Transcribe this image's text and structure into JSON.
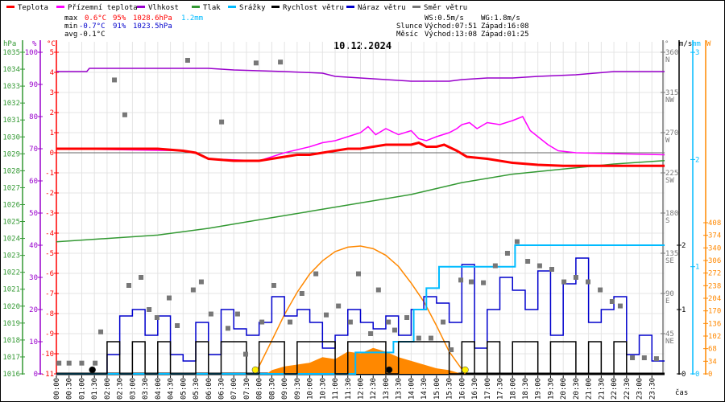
{
  "legend": [
    {
      "label": "Teplota",
      "color": "#ff0000"
    },
    {
      "label": "Přízemní teplota",
      "color": "#ff00ff"
    },
    {
      "label": "Vlhkost",
      "color": "#9900cc"
    },
    {
      "label": "Tlak",
      "color": "#339933"
    },
    {
      "label": "Srážky",
      "color": "#00bbff"
    },
    {
      "label": "Rychlost větru",
      "color": "#000000"
    },
    {
      "label": "Náraz větru",
      "color": "#0000cc"
    },
    {
      "label": "Směr větru",
      "color": "#777777"
    }
  ],
  "stats": {
    "max": {
      "label": "max",
      "temp": "0.6°C",
      "hum": "95%",
      "press": "1028.6hPa",
      "rain": "1.2mm"
    },
    "min": {
      "label": "min",
      "temp": "-0.7°C",
      "hum": "91%",
      "press": "1023.5hPa"
    },
    "avg": {
      "label": "avg",
      "temp": "-0.1°C"
    },
    "ws": "WS:0.5m/s",
    "wg": "WG:1.8m/s",
    "sun": {
      "label": "Slunce",
      "rise": "Východ:07:51",
      "set": "Západ:16:08"
    },
    "moon": {
      "label": "Měsíc",
      "rise": "Východ:13:08",
      "set": "Západ:01:25"
    }
  },
  "chart_data": {
    "type": "line",
    "title": "10.12.2024",
    "xlabel": "čas",
    "xlim": [
      0,
      24
    ],
    "x_ticks": [
      "00:00",
      "00:30",
      "01:00",
      "01:30",
      "02:00",
      "02:30",
      "03:00",
      "03:30",
      "04:00",
      "04:30",
      "05:00",
      "05:30",
      "06:00",
      "06:30",
      "07:00",
      "07:30",
      "08:00",
      "08:30",
      "09:00",
      "09:30",
      "10:00",
      "10:30",
      "11:00",
      "11:30",
      "12:00",
      "12:30",
      "13:00",
      "13:30",
      "14:00",
      "14:30",
      "15:00",
      "15:30",
      "16:00",
      "16:30",
      "17:00",
      "17:30",
      "18:00",
      "18:30",
      "19:00",
      "19:30",
      "20:00",
      "20:30",
      "21:00",
      "21:30",
      "22:00",
      "22:30",
      "23:00",
      "23:30"
    ],
    "axes": {
      "hPa": {
        "label": "hPa",
        "range": [
          1016,
          1035
        ],
        "ticks": [
          "1016",
          "1017",
          "1018",
          "1019",
          "1020",
          "1021",
          "1022",
          "1023",
          "1024",
          "1025",
          "1026",
          "1027",
          "1028",
          "1029",
          "1030",
          "1031",
          "1032",
          "1033",
          "1034",
          "1035"
        ]
      },
      "percent": {
        "label": "%",
        "range": [
          0,
          100
        ],
        "ticks": [
          "0",
          "10",
          "20",
          "30",
          "40",
          "50",
          "60",
          "70",
          "80",
          "90",
          "100"
        ]
      },
      "celsius": {
        "label": "°C",
        "range": [
          -11,
          5
        ],
        "ticks": [
          "-11",
          "-10",
          "-9",
          "-8",
          "-7",
          "-6",
          "-5",
          "-4",
          "-3",
          "-2",
          "-1",
          "0",
          "1",
          "2",
          "3",
          "4",
          "5"
        ]
      },
      "degrees": {
        "label": "°",
        "range": [
          0,
          360
        ],
        "ticks": [
          {
            "v": "45",
            "d": "NE"
          },
          {
            "v": "90",
            "d": "E"
          },
          {
            "v": "135",
            "d": "SE"
          },
          {
            "v": "180",
            "d": "S"
          },
          {
            "v": "225",
            "d": "SW"
          },
          {
            "v": "270",
            "d": "W"
          },
          {
            "v": "315",
            "d": "NW"
          },
          {
            "v": "360",
            "d": "N"
          }
        ]
      },
      "ms": {
        "label": "m/s",
        "range": [
          0,
          5
        ],
        "ticks": [
          "0",
          "1",
          "2"
        ]
      },
      "mm": {
        "label": "mm",
        "range": [
          0,
          3
        ],
        "ticks": [
          "0",
          "1",
          "2",
          "3"
        ]
      },
      "W": {
        "label": "W",
        "range": [
          0,
          868
        ],
        "ticks": [
          "0",
          "34",
          "68",
          "102",
          "136",
          "170",
          "204",
          "238",
          "272",
          "306",
          "340",
          "374",
          "408"
        ]
      }
    },
    "series": [
      {
        "name": "Teplota",
        "axis": "celsius",
        "color": "#ff0000",
        "points": [
          [
            0,
            0.2
          ],
          [
            1,
            0.2
          ],
          [
            2,
            0.2
          ],
          [
            3,
            0.2
          ],
          [
            4,
            0.2
          ],
          [
            5,
            0.1
          ],
          [
            5.5,
            0
          ],
          [
            6,
            -0.3
          ],
          [
            7,
            -0.4
          ],
          [
            8,
            -0.4
          ],
          [
            8.5,
            -0.3
          ],
          [
            9,
            -0.2
          ],
          [
            9.5,
            -0.1
          ],
          [
            10,
            -0.1
          ],
          [
            10.5,
            0
          ],
          [
            11,
            0.1
          ],
          [
            11.5,
            0.2
          ],
          [
            12,
            0.2
          ],
          [
            12.5,
            0.3
          ],
          [
            13,
            0.4
          ],
          [
            13.5,
            0.4
          ],
          [
            14,
            0.4
          ],
          [
            14.3,
            0.5
          ],
          [
            14.6,
            0.3
          ],
          [
            15,
            0.3
          ],
          [
            15.3,
            0.4
          ],
          [
            15.8,
            0.1
          ],
          [
            16.2,
            -0.2
          ],
          [
            17,
            -0.3
          ],
          [
            18,
            -0.5
          ],
          [
            19,
            -0.6
          ],
          [
            20,
            -0.65
          ],
          [
            22,
            -0.65
          ],
          [
            24,
            -0.65
          ]
        ]
      },
      {
        "name": "Přízemní teplota",
        "axis": "celsius",
        "color": "#ff00ff",
        "points": [
          [
            0,
            0.2
          ],
          [
            5,
            0.1
          ],
          [
            5.5,
            0
          ],
          [
            6,
            -0.3
          ],
          [
            8,
            -0.4
          ],
          [
            9,
            0.0
          ],
          [
            10,
            0.3
          ],
          [
            10.5,
            0.5
          ],
          [
            11,
            0.6
          ],
          [
            11.5,
            0.8
          ],
          [
            12,
            1.0
          ],
          [
            12.3,
            1.3
          ],
          [
            12.6,
            0.9
          ],
          [
            13,
            1.2
          ],
          [
            13.5,
            0.9
          ],
          [
            14,
            1.1
          ],
          [
            14.3,
            0.7
          ],
          [
            14.6,
            0.6
          ],
          [
            15,
            0.8
          ],
          [
            15.5,
            1.0
          ],
          [
            15.8,
            1.2
          ],
          [
            16,
            1.4
          ],
          [
            16.3,
            1.5
          ],
          [
            16.6,
            1.2
          ],
          [
            17,
            1.5
          ],
          [
            17.5,
            1.4
          ],
          [
            18,
            1.6
          ],
          [
            18.4,
            1.8
          ],
          [
            18.7,
            1.1
          ],
          [
            19,
            0.8
          ],
          [
            19.4,
            0.4
          ],
          [
            19.8,
            0.1
          ],
          [
            20.5,
            0
          ],
          [
            24,
            -0.1
          ]
        ]
      },
      {
        "name": "Vlhkost",
        "axis": "percent",
        "color": "#9900cc",
        "points": [
          [
            0,
            94
          ],
          [
            1.2,
            94
          ],
          [
            1.3,
            95
          ],
          [
            6,
            95
          ],
          [
            7,
            94.5
          ],
          [
            9,
            94
          ],
          [
            10.5,
            93.5
          ],
          [
            11,
            92.5
          ],
          [
            12,
            92
          ],
          [
            13,
            91.5
          ],
          [
            14,
            91
          ],
          [
            15.5,
            91
          ],
          [
            16,
            91.5
          ],
          [
            17,
            92
          ],
          [
            18,
            92
          ],
          [
            19,
            92.5
          ],
          [
            20.5,
            93
          ],
          [
            22,
            94
          ],
          [
            24,
            94
          ]
        ]
      },
      {
        "name": "Tlak",
        "axis": "hPa",
        "color": "#339933",
        "points": [
          [
            0,
            1023.8
          ],
          [
            2,
            1024.0
          ],
          [
            4,
            1024.2
          ],
          [
            6,
            1024.6
          ],
          [
            8,
            1025.1
          ],
          [
            10,
            1025.6
          ],
          [
            12,
            1026.1
          ],
          [
            14,
            1026.6
          ],
          [
            16,
            1027.3
          ],
          [
            18,
            1027.8
          ],
          [
            20,
            1028.1
          ],
          [
            22,
            1028.4
          ],
          [
            24,
            1028.6
          ]
        ]
      },
      {
        "name": "Srážky",
        "axis": "mm",
        "color": "#00bbff",
        "step": true,
        "points": [
          [
            0,
            0
          ],
          [
            11.8,
            0.2
          ],
          [
            13.3,
            0.3
          ],
          [
            14.1,
            0.6
          ],
          [
            14.6,
            0.8
          ],
          [
            15.1,
            1.0
          ],
          [
            18.1,
            1.2
          ],
          [
            24,
            1.2
          ]
        ]
      },
      {
        "name": "Sluneční záření (teoretické)",
        "axis": "W",
        "color": "#ff8800",
        "points": [
          [
            7.85,
            0
          ],
          [
            8.5,
            90
          ],
          [
            9,
            160
          ],
          [
            9.5,
            220
          ],
          [
            10,
            270
          ],
          [
            10.5,
            305
          ],
          [
            11,
            330
          ],
          [
            11.5,
            342
          ],
          [
            12,
            345
          ],
          [
            12.5,
            338
          ],
          [
            13,
            320
          ],
          [
            13.5,
            290
          ],
          [
            14,
            245
          ],
          [
            14.5,
            195
          ],
          [
            15,
            130
          ],
          [
            15.5,
            60
          ],
          [
            16.13,
            0
          ]
        ]
      },
      {
        "name": "Sluneční záření",
        "axis": "W",
        "color": "#ff8800",
        "fill": true,
        "points": [
          [
            8.3,
            0
          ],
          [
            8.5,
            10
          ],
          [
            9,
            20
          ],
          [
            9.5,
            25
          ],
          [
            10,
            30
          ],
          [
            10.5,
            45
          ],
          [
            11,
            40
          ],
          [
            11.5,
            60
          ],
          [
            12,
            55
          ],
          [
            12.5,
            70
          ],
          [
            13,
            60
          ],
          [
            13.5,
            45
          ],
          [
            14,
            35
          ],
          [
            14.5,
            25
          ],
          [
            15,
            15
          ],
          [
            15.5,
            10
          ],
          [
            16,
            0
          ]
        ]
      },
      {
        "name": "Rychlost větru",
        "axis": "ms",
        "color": "#000000",
        "step": true,
        "interval": 0.5,
        "values": [
          0,
          0,
          0,
          0,
          0.5,
          0,
          0.5,
          0,
          0.5,
          0,
          0,
          0.5,
          0,
          0.5,
          0.5,
          0,
          0.5,
          0.5,
          0,
          0.5,
          0.5,
          0.5,
          0,
          0.5,
          0.5,
          0.5,
          0,
          0.5,
          0.5,
          0.5,
          0.5,
          0,
          0.5,
          0,
          0.5,
          0,
          0.5,
          0.5,
          0,
          0.5,
          0.5,
          0,
          0.5,
          0,
          0.5,
          0,
          0,
          0
        ]
      },
      {
        "name": "Náraz větru",
        "axis": "ms",
        "color": "#0000cc",
        "step": true,
        "interval": 0.5,
        "values": [
          0,
          0,
          0,
          0,
          0.3,
          0.9,
          1.0,
          0.6,
          0.9,
          0.3,
          0.2,
          0.8,
          0.3,
          1.0,
          0.7,
          0.6,
          0.8,
          1.2,
          0.9,
          1.0,
          0.8,
          0.4,
          0.6,
          1.0,
          0.8,
          0.7,
          0.9,
          0.6,
          1.0,
          1.2,
          1.1,
          0.8,
          1.7,
          0.4,
          1.0,
          1.5,
          1.3,
          1.0,
          1.6,
          0.6,
          1.4,
          1.8,
          0.8,
          1.0,
          1.2,
          0.3,
          0.6,
          0.2
        ]
      },
      {
        "name": "Směr větru",
        "axis": "degrees",
        "color": "#777777",
        "scatter": true,
        "points": [
          [
            0.1,
            12
          ],
          [
            0.5,
            12
          ],
          [
            1.0,
            12
          ],
          [
            1.53,
            12
          ],
          [
            1.75,
            47
          ],
          [
            2.29,
            329
          ],
          [
            2.7,
            290
          ],
          [
            2.86,
            99
          ],
          [
            3.34,
            108
          ],
          [
            3.66,
            72
          ],
          [
            3.97,
            63
          ],
          [
            4.45,
            85
          ],
          [
            4.77,
            54
          ],
          [
            5.18,
            351
          ],
          [
            5.4,
            94
          ],
          [
            5.72,
            103
          ],
          [
            6.1,
            67
          ],
          [
            6.52,
            282
          ],
          [
            6.77,
            51
          ],
          [
            7.15,
            67
          ],
          [
            7.47,
            22
          ],
          [
            7.88,
            348
          ],
          [
            8.11,
            58
          ],
          [
            8.58,
            99
          ],
          [
            8.84,
            349
          ],
          [
            9.22,
            58
          ],
          [
            9.69,
            90
          ],
          [
            10.24,
            112
          ],
          [
            10.65,
            66
          ],
          [
            11.13,
            76
          ],
          [
            11.6,
            58
          ],
          [
            11.92,
            112
          ],
          [
            12.4,
            45
          ],
          [
            12.71,
            94
          ],
          [
            13.1,
            58
          ],
          [
            13.35,
            49
          ],
          [
            13.83,
            63
          ],
          [
            14.3,
            40
          ],
          [
            14.78,
            40
          ],
          [
            15.26,
            58
          ],
          [
            15.58,
            27
          ],
          [
            15.96,
            105
          ],
          [
            16.37,
            103
          ],
          [
            16.85,
            102
          ],
          [
            17.32,
            121
          ],
          [
            17.8,
            135
          ],
          [
            18.18,
            148
          ],
          [
            18.6,
            126
          ],
          [
            19.07,
            121
          ],
          [
            19.55,
            117
          ],
          [
            20.03,
            103
          ],
          [
            20.5,
            108
          ],
          [
            20.98,
            103
          ],
          [
            21.46,
            94
          ],
          [
            21.93,
            81
          ],
          [
            22.25,
            76
          ],
          [
            22.73,
            18
          ],
          [
            23.2,
            18
          ],
          [
            23.68,
            17
          ]
        ]
      }
    ],
    "markers": [
      {
        "name": "sunrise",
        "time": 7.85,
        "color": "#ffee00"
      },
      {
        "name": "sunset",
        "time": 16.13,
        "color": "#ffee00"
      },
      {
        "name": "moonset",
        "time": 1.42,
        "color": "#000000"
      },
      {
        "name": "moonrise",
        "time": 13.13,
        "color": "#000000"
      }
    ]
  }
}
